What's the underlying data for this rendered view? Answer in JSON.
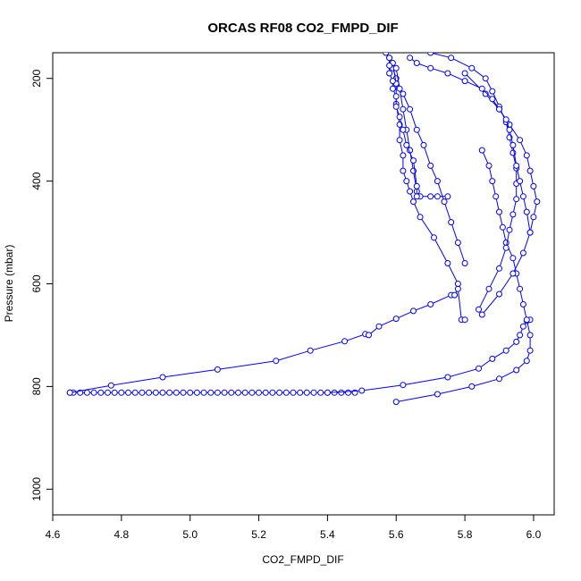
{
  "chart_data": {
    "type": "line",
    "title": "ORCAS RF08 CO2_FMPD_DIF",
    "xlabel": "CO2_FMPD_DIF",
    "ylabel": "Pressure (mbar)",
    "xlim": [
      4.6,
      6.06
    ],
    "ylim": [
      1050,
      150
    ],
    "y_reversed": true,
    "x_ticks": [
      "4.6",
      "4.8",
      "5.0",
      "5.2",
      "5.4",
      "5.6",
      "5.8",
      "6.0"
    ],
    "y_ticks": [
      "200",
      "400",
      "600",
      "800",
      "1000"
    ],
    "grid": false,
    "line_color": "#0000ff",
    "marker": "open-circle",
    "series": [
      {
        "x": [
          4.65,
          4.66,
          4.68,
          4.7,
          4.72,
          4.74,
          4.76,
          4.78,
          4.8,
          4.82,
          4.84,
          4.86,
          4.88,
          4.9,
          4.92,
          4.94,
          4.96,
          4.98,
          5.0,
          5.02,
          5.04,
          5.06,
          5.08,
          5.1,
          5.12,
          5.14,
          5.16,
          5.18,
          5.2,
          5.22,
          5.24,
          5.26,
          5.28,
          5.3,
          5.32,
          5.34,
          5.36,
          5.38,
          5.4,
          5.42,
          5.44,
          5.46,
          5.48
        ],
        "y": [
          812,
          812,
          812,
          812,
          812,
          812,
          812,
          812,
          812,
          812,
          812,
          812,
          812,
          812,
          812,
          812,
          812,
          812,
          812,
          812,
          812,
          812,
          812,
          812,
          812,
          812,
          812,
          812,
          812,
          812,
          812,
          812,
          812,
          812,
          812,
          812,
          812,
          812,
          812,
          812,
          812,
          812,
          812
        ]
      },
      {
        "x": [
          4.65,
          4.77,
          4.92,
          5.08,
          5.25,
          5.35,
          5.45,
          5.51,
          5.52,
          5.55,
          5.6,
          5.65,
          5.7,
          5.76,
          5.77,
          5.78,
          5.79,
          5.8
        ],
        "y": [
          812,
          798,
          782,
          767,
          750,
          730,
          712,
          698,
          700,
          683,
          668,
          653,
          640,
          622,
          622,
          610,
          670,
          670
        ]
      },
      {
        "x": [
          5.4,
          5.5,
          5.62,
          5.75,
          5.84,
          5.88,
          5.92,
          5.95,
          5.96,
          5.97,
          5.98,
          5.99
        ],
        "y": [
          812,
          808,
          797,
          782,
          765,
          746,
          730,
          713,
          700,
          683,
          672,
          670
        ]
      },
      {
        "x": [
          5.6,
          5.72,
          5.82,
          5.9,
          5.95,
          5.98,
          5.99,
          5.99,
          5.98,
          5.97,
          5.96,
          5.95,
          5.94,
          5.92,
          5.91,
          5.9,
          5.89,
          5.88,
          5.87,
          5.85
        ],
        "y": [
          830,
          815,
          800,
          785,
          768,
          750,
          730,
          700,
          670,
          640,
          610,
          580,
          550,
          520,
          490,
          460,
          430,
          400,
          370,
          340
        ]
      },
      {
        "x": [
          5.85,
          5.9,
          5.94,
          5.97,
          5.99,
          6.0,
          6.01,
          6.0,
          5.99,
          5.98,
          5.96,
          5.93,
          5.9,
          5.86,
          5.8
        ],
        "y": [
          660,
          620,
          580,
          540,
          500,
          470,
          440,
          410,
          380,
          350,
          320,
          290,
          260,
          230,
          190
        ]
      },
      {
        "x": [
          5.84,
          5.87,
          5.9,
          5.92,
          5.93,
          5.94,
          5.95,
          5.95,
          5.95,
          5.94,
          5.93,
          5.92,
          5.9,
          5.88,
          5.86,
          5.82,
          5.76,
          5.7
        ],
        "y": [
          650,
          610,
          570,
          530,
          495,
          465,
          435,
          405,
          375,
          345,
          315,
          285,
          255,
          225,
          200,
          180,
          160,
          150
        ]
      },
      {
        "x": [
          5.8,
          5.78,
          5.76,
          5.74,
          5.72,
          5.7,
          5.68,
          5.66,
          5.64,
          5.62,
          5.6,
          5.59,
          5.58,
          5.57
        ],
        "y": [
          560,
          520,
          480,
          440,
          400,
          370,
          330,
          300,
          260,
          230,
          200,
          180,
          160,
          150
        ]
      },
      {
        "x": [
          5.78,
          5.75,
          5.71,
          5.67,
          5.65,
          5.64,
          5.63,
          5.62,
          5.62,
          5.61,
          5.61,
          5.6,
          5.6,
          5.59
        ],
        "y": [
          600,
          560,
          510,
          470,
          440,
          420,
          400,
          380,
          350,
          320,
          290,
          250,
          210,
          170
        ]
      },
      {
        "x": [
          5.6,
          5.61,
          5.62,
          5.63,
          5.64,
          5.65,
          5.66,
          5.67,
          5.7,
          5.72,
          5.75
        ],
        "y": [
          180,
          220,
          260,
          300,
          340,
          380,
          420,
          430,
          430,
          430,
          430
        ]
      },
      {
        "x": [
          5.58,
          5.58,
          5.58,
          5.59,
          5.59,
          5.6,
          5.6,
          5.61,
          5.62,
          5.63,
          5.65,
          5.66,
          5.66
        ],
        "y": [
          160,
          175,
          190,
          205,
          220,
          235,
          255,
          275,
          300,
          330,
          360,
          410,
          430
        ]
      },
      {
        "x": [
          5.64,
          5.66,
          5.7,
          5.75,
          5.8,
          5.85,
          5.88,
          5.9,
          5.92,
          5.93,
          5.94,
          5.95,
          5.96,
          5.97,
          5.98,
          5.99
        ],
        "y": [
          160,
          170,
          180,
          190,
          205,
          220,
          240,
          260,
          280,
          300,
          330,
          370,
          400,
          430,
          460,
          500
        ]
      }
    ]
  }
}
